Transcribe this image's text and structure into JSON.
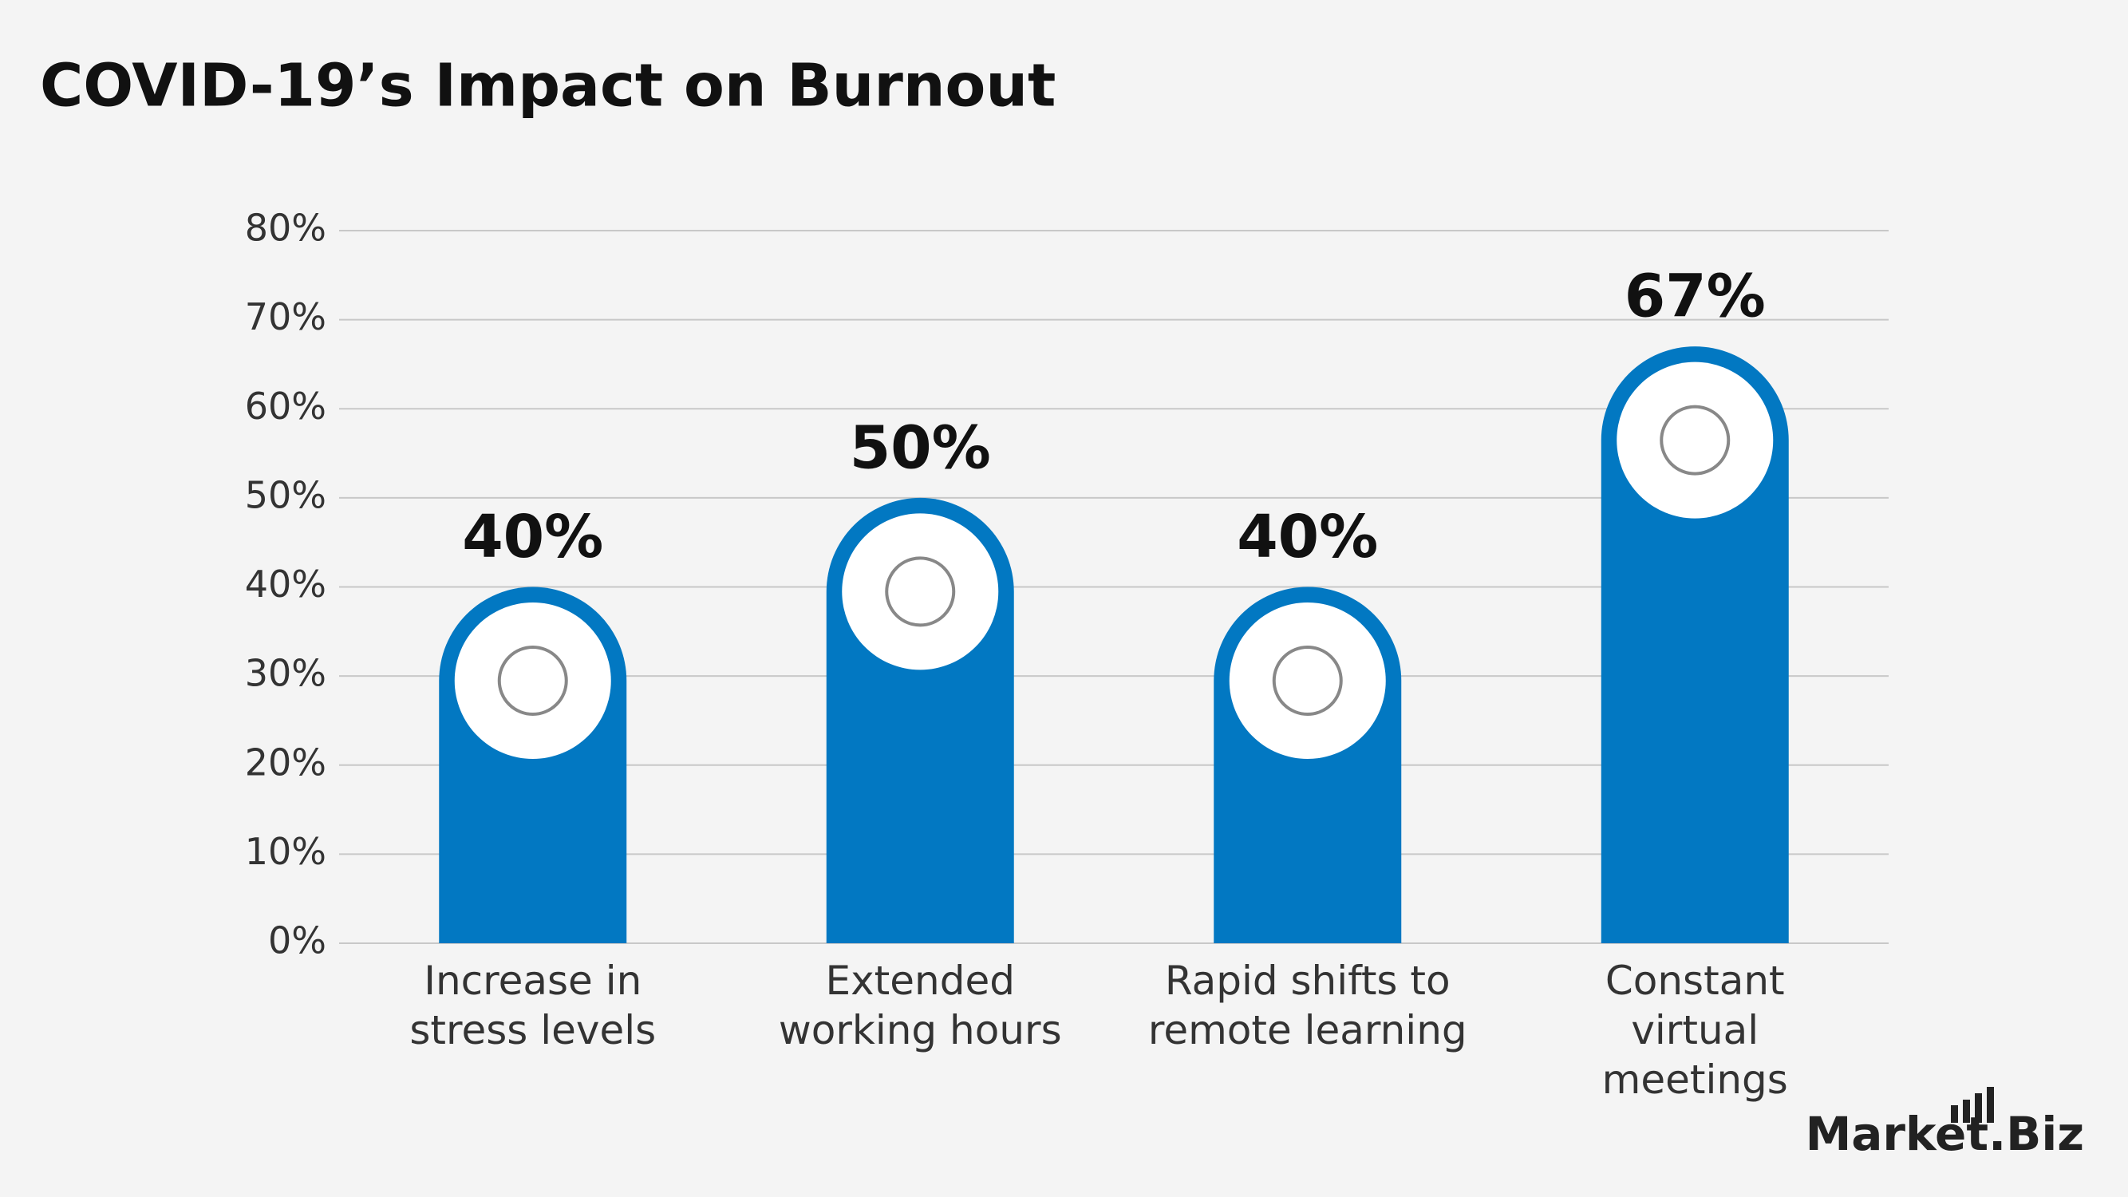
{
  "chart_data": {
    "type": "bar",
    "title": "COVID-19’s Impact on Burnout",
    "categories": [
      "Increase in stress levels",
      "Extended working hours",
      "Rapid shifts to remote learning",
      "Constant virtual meetings"
    ],
    "values": [
      40,
      50,
      40,
      67
    ],
    "value_labels": [
      "40%",
      "50%",
      "40%",
      "67%"
    ],
    "color": "#0278c2",
    "ylim": [
      0,
      80
    ],
    "yticks": [
      {
        "value": 0,
        "label": "0%"
      },
      {
        "value": 10,
        "label": "10%"
      },
      {
        "value": 20,
        "label": "20%"
      },
      {
        "value": 30,
        "label": "30%"
      },
      {
        "value": 40,
        "label": "40%"
      },
      {
        "value": 50,
        "label": "50%"
      },
      {
        "value": 60,
        "label": "60%"
      },
      {
        "value": 70,
        "label": "70%"
      },
      {
        "value": 80,
        "label": "80%"
      }
    ],
    "grid": true
  },
  "brand": "Market.Biz"
}
